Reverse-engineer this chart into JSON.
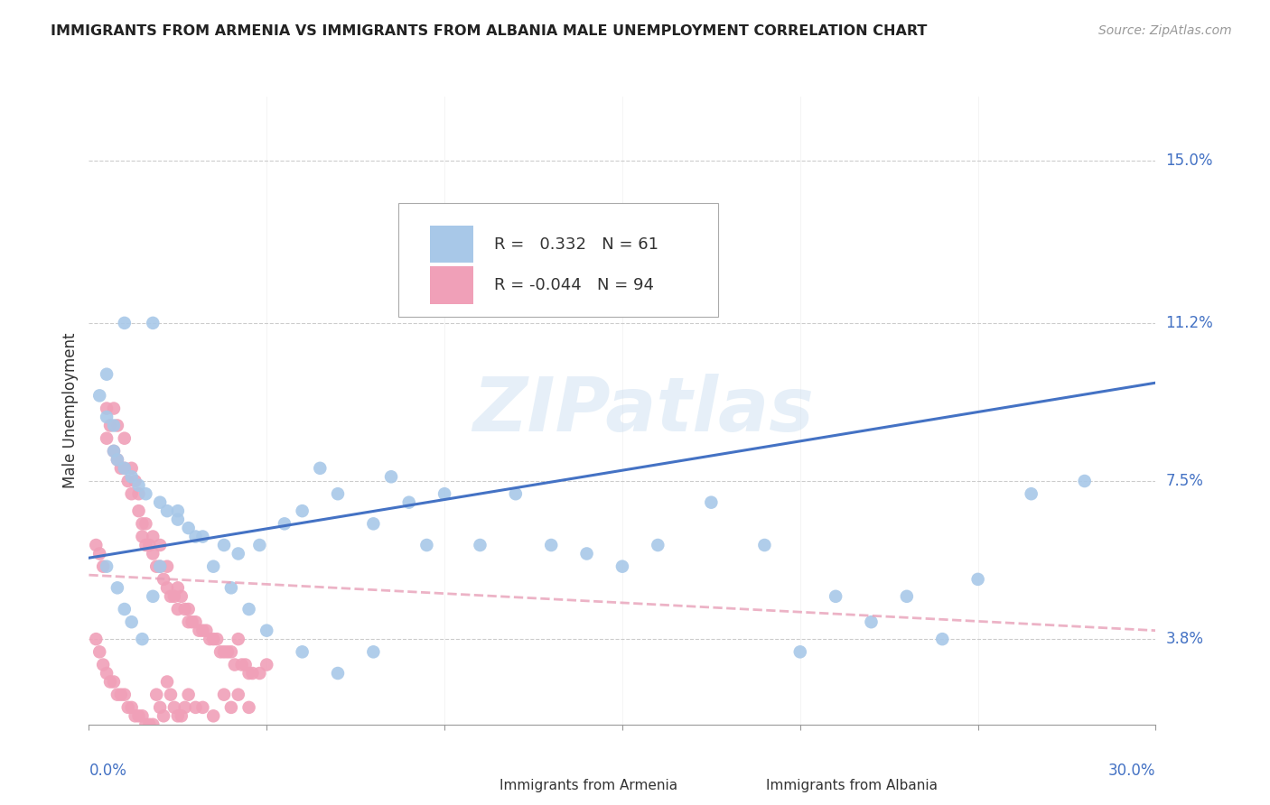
{
  "title": "IMMIGRANTS FROM ARMENIA VS IMMIGRANTS FROM ALBANIA MALE UNEMPLOYMENT CORRELATION CHART",
  "source": "Source: ZipAtlas.com",
  "ylabel": "Male Unemployment",
  "ytick_labels": [
    "15.0%",
    "11.2%",
    "7.5%",
    "3.8%"
  ],
  "ytick_values": [
    0.15,
    0.112,
    0.075,
    0.038
  ],
  "xlim": [
    0.0,
    0.3
  ],
  "ylim": [
    0.018,
    0.165
  ],
  "legend_r_armenia": "0.332",
  "legend_n_armenia": "61",
  "legend_r_albania": "-0.044",
  "legend_n_albania": "94",
  "armenia_color": "#a8c8e8",
  "albania_color": "#f0a0b8",
  "armenia_line_color": "#4472c4",
  "albania_line_color": "#e8a0b8",
  "watermark": "ZIPatlas",
  "armenia_scatter_x": [
    0.01,
    0.018,
    0.005,
    0.003,
    0.005,
    0.007,
    0.007,
    0.008,
    0.01,
    0.012,
    0.014,
    0.016,
    0.02,
    0.022,
    0.025,
    0.028,
    0.032,
    0.038,
    0.042,
    0.048,
    0.055,
    0.06,
    0.065,
    0.07,
    0.08,
    0.085,
    0.09,
    0.095,
    0.1,
    0.11,
    0.12,
    0.13,
    0.14,
    0.15,
    0.16,
    0.175,
    0.19,
    0.2,
    0.21,
    0.22,
    0.23,
    0.24,
    0.25,
    0.265,
    0.28,
    0.005,
    0.008,
    0.01,
    0.012,
    0.015,
    0.018,
    0.02,
    0.025,
    0.03,
    0.035,
    0.04,
    0.045,
    0.05,
    0.06,
    0.07,
    0.08
  ],
  "armenia_scatter_y": [
    0.112,
    0.112,
    0.1,
    0.095,
    0.09,
    0.088,
    0.082,
    0.08,
    0.078,
    0.076,
    0.074,
    0.072,
    0.07,
    0.068,
    0.066,
    0.064,
    0.062,
    0.06,
    0.058,
    0.06,
    0.065,
    0.068,
    0.078,
    0.072,
    0.065,
    0.076,
    0.07,
    0.06,
    0.072,
    0.06,
    0.072,
    0.06,
    0.058,
    0.055,
    0.06,
    0.07,
    0.06,
    0.035,
    0.048,
    0.042,
    0.048,
    0.038,
    0.052,
    0.072,
    0.075,
    0.055,
    0.05,
    0.045,
    0.042,
    0.038,
    0.048,
    0.055,
    0.068,
    0.062,
    0.055,
    0.05,
    0.045,
    0.04,
    0.035,
    0.03,
    0.035
  ],
  "albania_scatter_x": [
    0.002,
    0.003,
    0.004,
    0.005,
    0.005,
    0.006,
    0.007,
    0.007,
    0.008,
    0.008,
    0.009,
    0.01,
    0.01,
    0.011,
    0.012,
    0.012,
    0.013,
    0.014,
    0.014,
    0.015,
    0.015,
    0.016,
    0.016,
    0.017,
    0.018,
    0.018,
    0.019,
    0.02,
    0.02,
    0.021,
    0.022,
    0.022,
    0.023,
    0.024,
    0.025,
    0.025,
    0.026,
    0.027,
    0.028,
    0.028,
    0.029,
    0.03,
    0.031,
    0.032,
    0.033,
    0.034,
    0.035,
    0.036,
    0.037,
    0.038,
    0.039,
    0.04,
    0.041,
    0.042,
    0.043,
    0.044,
    0.045,
    0.046,
    0.048,
    0.05,
    0.002,
    0.003,
    0.004,
    0.005,
    0.006,
    0.007,
    0.008,
    0.009,
    0.01,
    0.011,
    0.012,
    0.013,
    0.014,
    0.015,
    0.016,
    0.017,
    0.018,
    0.019,
    0.02,
    0.021,
    0.022,
    0.023,
    0.024,
    0.025,
    0.026,
    0.027,
    0.028,
    0.03,
    0.032,
    0.035,
    0.038,
    0.04,
    0.042,
    0.045
  ],
  "albania_scatter_y": [
    0.06,
    0.058,
    0.055,
    0.092,
    0.085,
    0.088,
    0.092,
    0.082,
    0.088,
    0.08,
    0.078,
    0.085,
    0.078,
    0.075,
    0.078,
    0.072,
    0.075,
    0.072,
    0.068,
    0.065,
    0.062,
    0.065,
    0.06,
    0.06,
    0.062,
    0.058,
    0.055,
    0.06,
    0.055,
    0.052,
    0.055,
    0.05,
    0.048,
    0.048,
    0.05,
    0.045,
    0.048,
    0.045,
    0.045,
    0.042,
    0.042,
    0.042,
    0.04,
    0.04,
    0.04,
    0.038,
    0.038,
    0.038,
    0.035,
    0.035,
    0.035,
    0.035,
    0.032,
    0.038,
    0.032,
    0.032,
    0.03,
    0.03,
    0.03,
    0.032,
    0.038,
    0.035,
    0.032,
    0.03,
    0.028,
    0.028,
    0.025,
    0.025,
    0.025,
    0.022,
    0.022,
    0.02,
    0.02,
    0.02,
    0.018,
    0.018,
    0.018,
    0.025,
    0.022,
    0.02,
    0.028,
    0.025,
    0.022,
    0.02,
    0.02,
    0.022,
    0.025,
    0.022,
    0.022,
    0.02,
    0.025,
    0.022,
    0.025,
    0.022
  ],
  "armenia_line_x": [
    0.0,
    0.3
  ],
  "armenia_line_y": [
    0.057,
    0.098
  ],
  "albania_line_x": [
    0.0,
    0.3
  ],
  "albania_line_y": [
    0.053,
    0.04
  ]
}
